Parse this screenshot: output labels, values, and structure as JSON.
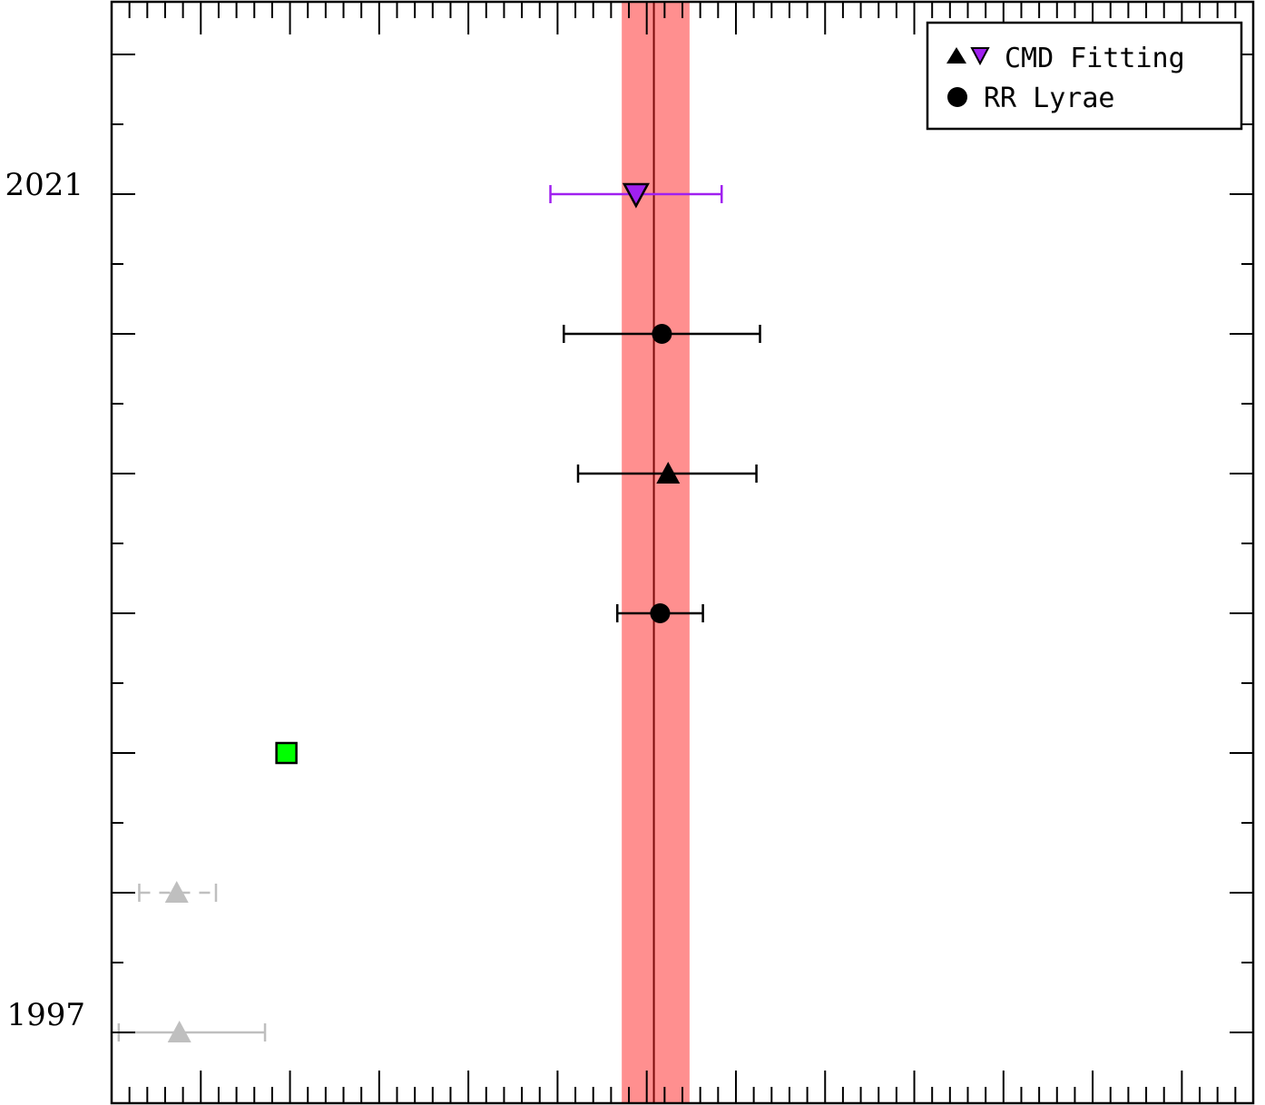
{
  "chart_data": {
    "type": "scatter",
    "title": "",
    "xlabel": "",
    "ylabel": "",
    "x_ticks": {
      "major_step": 1,
      "minor_step": 0.2
    },
    "ylim": [
      1995,
      2034
    ],
    "y_tick_labels": [
      "1997",
      "2021"
    ],
    "reference": {
      "value": 11.08,
      "band": [
        10.72,
        11.48
      ],
      "band_color": "#ff8f8f",
      "line_color": "#7a0a0a"
    },
    "legend": {
      "placement": "top-right",
      "entries": [
        {
          "markers": [
            "triangle-up",
            "triangle-down"
          ],
          "label": "CMD Fitting"
        },
        {
          "markers": [
            "circle"
          ],
          "label": "RR Lyrae"
        }
      ]
    },
    "points": [
      {
        "y": 2021,
        "x": 10.88,
        "xerr_low": 0.96,
        "xerr_high": 0.96,
        "marker": "triangle-down",
        "color": "#a020f0",
        "bar_color": "#a020f0"
      },
      {
        "y": 2017,
        "x": 11.17,
        "xerr_low": 1.1,
        "xerr_high": 1.1,
        "marker": "circle",
        "color": "#000000",
        "bar_color": "#000000"
      },
      {
        "y": 2013,
        "x": 11.24,
        "xerr_low": 1.01,
        "xerr_high": 0.99,
        "marker": "triangle-up",
        "color": "#000000",
        "bar_color": "#000000"
      },
      {
        "y": 2009,
        "x": 11.15,
        "xerr_low": 0.48,
        "xerr_high": 0.48,
        "marker": "circle",
        "color": "#000000",
        "bar_color": "#000000"
      },
      {
        "y": 2005,
        "x": 6.96,
        "marker": "square",
        "color": "#00ff00"
      },
      {
        "y": 2001,
        "x": 5.73,
        "xerr_low": 0.42,
        "xerr_high": 0.44,
        "marker": "triangle-up",
        "color": "#bfbfbf",
        "bar_color": "#bfbfbf",
        "bar_dashed": true
      },
      {
        "y": 1997,
        "x": 5.76,
        "xerr_low": 0.68,
        "xerr_high": 0.96,
        "marker": "triangle-up",
        "color": "#bfbfbf",
        "bar_color": "#bfbfbf"
      }
    ]
  }
}
